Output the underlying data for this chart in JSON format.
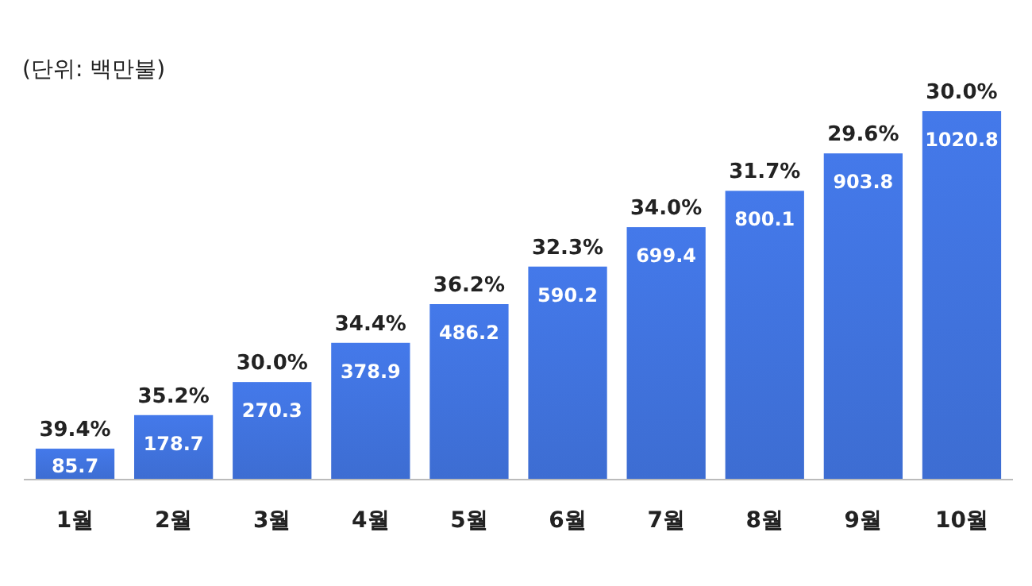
{
  "chart_data": {
    "type": "bar",
    "subtitle": "(단위: 백만불)",
    "categories": [
      "1월",
      "2월",
      "3월",
      "4월",
      "5월",
      "6월",
      "7월",
      "8월",
      "9월",
      "10월"
    ],
    "values": [
      85.7,
      178.7,
      270.3,
      378.9,
      486.2,
      590.2,
      699.4,
      800.1,
      903.8,
      1020.8
    ],
    "color": "#3d6dd2",
    "data_labels": true,
    "annotations": [
      {
        "text": "39.4%",
        "x": "1월",
        "y": 85.7
      },
      {
        "text": "35.2%",
        "x": "2월",
        "y": 178.7
      },
      {
        "text": "30.0%",
        "x": "3월",
        "y": 270.3
      },
      {
        "text": "34.4%",
        "x": "4월",
        "y": 378.9
      },
      {
        "text": "36.2%",
        "x": "5월",
        "y": 486.2
      },
      {
        "text": "32.3%",
        "x": "6월",
        "y": 590.2
      },
      {
        "text": "34.0%",
        "x": "7월",
        "y": 699.4
      },
      {
        "text": "31.7%",
        "x": "8월",
        "y": 800.1
      },
      {
        "text": "29.6%",
        "x": "9월",
        "y": 903.8
      },
      {
        "text": "30.0%",
        "x": "10월",
        "y": 1020.8
      }
    ]
  }
}
